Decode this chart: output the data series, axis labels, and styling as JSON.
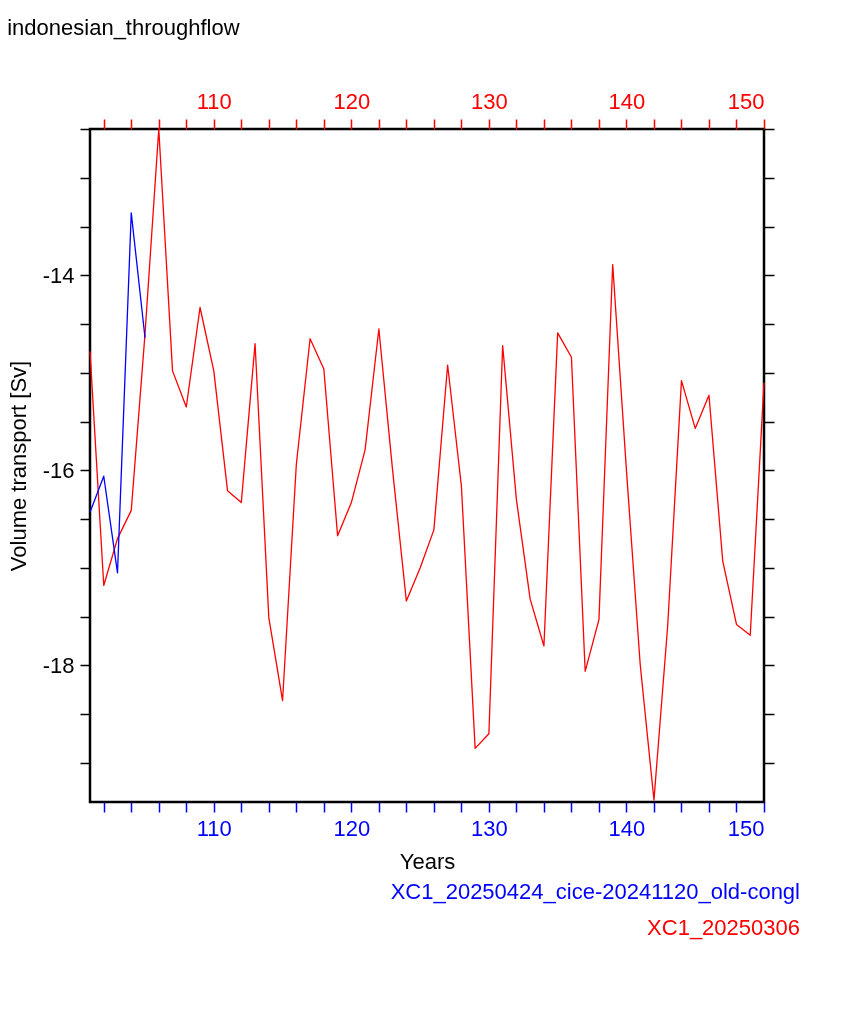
{
  "chart_data": {
    "type": "line",
    "title": "indonesian_throughflow",
    "xlabel": "Years",
    "ylabel": "Volume transport [Sv]",
    "xlim": [
      101,
      150
    ],
    "x2lim": [
      101,
      150
    ],
    "xticks": [
      {
        "value": 102,
        "label": null
      },
      {
        "value": 104,
        "label": null
      },
      {
        "value": 106,
        "label": null
      },
      {
        "value": 108,
        "label": null
      },
      110,
      {
        "value": 112,
        "label": null
      },
      {
        "value": 114,
        "label": null
      },
      {
        "value": 116,
        "label": null
      },
      {
        "value": 118,
        "label": null
      },
      120,
      {
        "value": 122,
        "label": null
      },
      {
        "value": 124,
        "label": null
      },
      {
        "value": 126,
        "label": null
      },
      {
        "value": 128,
        "label": null
      },
      130,
      {
        "value": 132,
        "label": null
      },
      {
        "value": 134,
        "label": null
      },
      {
        "value": 136,
        "label": null
      },
      {
        "value": 138,
        "label": null
      },
      140,
      {
        "value": 142,
        "label": null
      },
      {
        "value": 144,
        "label": null
      },
      {
        "value": 146,
        "label": null
      },
      {
        "value": 148,
        "label": null
      },
      150
    ],
    "x2ticks": [
      {
        "value": 102,
        "label": null
      },
      {
        "value": 104,
        "label": null
      },
      {
        "value": 106,
        "label": null
      },
      {
        "value": 108,
        "label": null
      },
      110,
      {
        "value": 112,
        "label": null
      },
      {
        "value": 114,
        "label": null
      },
      {
        "value": 116,
        "label": null
      },
      {
        "value": 118,
        "label": null
      },
      120,
      {
        "value": 122,
        "label": null
      },
      {
        "value": 124,
        "label": null
      },
      {
        "value": 126,
        "label": null
      },
      {
        "value": 128,
        "label": null
      },
      130,
      {
        "value": 132,
        "label": null
      },
      {
        "value": 134,
        "label": null
      },
      {
        "value": 136,
        "label": null
      },
      {
        "value": 138,
        "label": null
      },
      140,
      {
        "value": 142,
        "label": null
      },
      {
        "value": 144,
        "label": null
      },
      {
        "value": 146,
        "label": null
      },
      {
        "value": 148,
        "label": null
      },
      150
    ],
    "ylim": [
      -19.4,
      -12.5
    ],
    "yticks": [
      {
        "value": -19,
        "label": null
      },
      {
        "value": -18.5,
        "label": null
      },
      -18,
      {
        "value": -17.5,
        "label": null
      },
      {
        "value": -17,
        "label": null
      },
      {
        "value": -16.5,
        "label": null
      },
      -16,
      {
        "value": -15.5,
        "label": null
      },
      {
        "value": -15,
        "label": null
      },
      {
        "value": -14.5,
        "label": null
      },
      -14,
      {
        "value": -13.5,
        "label": null
      },
      {
        "value": -13,
        "label": null
      },
      {
        "value": -12.5,
        "label": null
      }
    ],
    "grid": false,
    "legend": "bottom right",
    "marker": "none",
    "line_style": "solid",
    "series": [
      {
        "name": "XC1_20250424_cice-20241120_old-congl",
        "color": "#0000ff",
        "x": [
          101,
          102,
          103,
          104,
          105
        ],
        "values": [
          -16.43,
          -16.06,
          -17.05,
          -13.36,
          -14.64
        ]
      },
      {
        "name": "XC1_20250306",
        "color": "#ff0000",
        "axis": "x2",
        "x": [
          101,
          102,
          103,
          104,
          105,
          106,
          107,
          108,
          109,
          110,
          111,
          112,
          113,
          114,
          115,
          116,
          117,
          118,
          119,
          120,
          121,
          122,
          123,
          124,
          125,
          126,
          127,
          128,
          129,
          130,
          131,
          132,
          133,
          134,
          135,
          136,
          137,
          138,
          139,
          140,
          141,
          142,
          143,
          144,
          145,
          146,
          147,
          148,
          149,
          150
        ],
        "values": [
          -14.78,
          -17.18,
          -16.7,
          -16.41,
          -14.6,
          -12.5,
          -14.98,
          -15.35,
          -14.33,
          -14.98,
          -16.21,
          -16.33,
          -14.7,
          -17.51,
          -18.36,
          -15.94,
          -14.65,
          -14.96,
          -16.67,
          -16.33,
          -15.79,
          -14.55,
          -16.0,
          -17.34,
          -17.0,
          -16.61,
          -14.92,
          -16.16,
          -18.85,
          -18.7,
          -14.72,
          -16.3,
          -17.32,
          -17.8,
          -14.59,
          -14.84,
          -18.06,
          -17.53,
          -13.89,
          -16.0,
          -17.99,
          -19.38,
          -17.59,
          -15.08,
          -15.57,
          -15.23,
          -16.93,
          -17.58,
          -17.69,
          -15.1
        ]
      }
    ]
  }
}
